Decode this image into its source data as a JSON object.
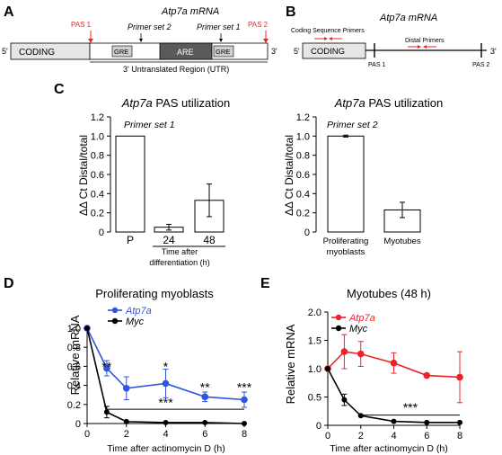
{
  "panels": {
    "A": {
      "label": "A",
      "title": "Atp7a mRNA",
      "five_prime": "5'",
      "three_prime": "3'",
      "coding": "CODING",
      "gre1": "GRE",
      "are": "ARE",
      "gre2": "GRE",
      "pas1": "PAS 1",
      "pas2": "PAS 2",
      "primer2": "Primer set 2",
      "primer1": "Primer set 1",
      "utr": "3' Untranslated Region (UTR)",
      "pas_color": "#e8242a"
    },
    "B": {
      "label": "B",
      "title": "Atp7a mRNA",
      "five_prime": "5'",
      "three_prime": "3'",
      "coding": "CODING",
      "coding_primers": "Coding Sequence Primers",
      "distal_primers": "Distal Primers",
      "pas1": "PAS 1",
      "pas2": "PAS 2",
      "arrow_color": "#e8242a"
    },
    "C": {
      "label": "C"
    },
    "D": {
      "label": "D"
    },
    "E": {
      "label": "E"
    }
  },
  "chart_data": [
    {
      "id": "C1",
      "type": "bar",
      "title": "Atp7a PAS utilization",
      "inset": "Primer set 1",
      "ylabel": "ΔΔ Ct Distal/total",
      "ylim": [
        0,
        1.2
      ],
      "yticks": [
        "0",
        "0.2",
        "0.4",
        "0.6",
        "0.8",
        "1.0",
        "1.2"
      ],
      "categories": [
        "P",
        "24",
        "48"
      ],
      "values": [
        1.0,
        0.05,
        0.33
      ],
      "errors": [
        0,
        0.03,
        0.17
      ],
      "group_label": "Time after differentiation (h)"
    },
    {
      "id": "C2",
      "type": "bar",
      "title": "Atp7a PAS utilization",
      "inset": "Primer set 2",
      "ylabel": "ΔΔ Ct Distal/total",
      "ylim": [
        0,
        1.2
      ],
      "yticks": [
        "0",
        "0.2",
        "0.4",
        "0.6",
        "0.8",
        "1.0",
        "1.2"
      ],
      "categories": [
        "Proliferating myoblasts",
        "Myotubes"
      ],
      "category_lines": [
        [
          "Proliferating",
          "myoblasts"
        ],
        [
          "Myotubes"
        ]
      ],
      "values": [
        1.0,
        0.23
      ],
      "errors": [
        0.01,
        0.08
      ]
    },
    {
      "id": "D",
      "type": "line",
      "title": "Proliferating myoblasts",
      "xlabel": "Time after actinomycin D (h)",
      "ylabel": "Relative mRNA",
      "xlim": [
        0,
        8
      ],
      "ylim": [
        0,
        1.0
      ],
      "xticks": [
        "0",
        "2",
        "4",
        "6",
        "8"
      ],
      "yticks": [
        "0",
        "0.2",
        "0.4",
        "0.6",
        "0.8",
        "1.0"
      ],
      "x": [
        0,
        1,
        2,
        4,
        6,
        8
      ],
      "series": [
        {
          "name": "Atp7a",
          "color": "#3355dd",
          "values": [
            1.0,
            0.58,
            0.37,
            0.42,
            0.28,
            0.25
          ],
          "errors": [
            0,
            0.08,
            0.12,
            0.15,
            0.05,
            0.08
          ]
        },
        {
          "name": "Myc",
          "color": "#000000",
          "values": [
            1.0,
            0.12,
            0.02,
            0.01,
            0.01,
            0.0
          ],
          "errors": [
            0,
            0.06,
            0,
            0,
            0,
            0
          ]
        }
      ],
      "annotations": [
        {
          "text": "**",
          "x": 1,
          "y": 0.6
        },
        {
          "text": "*",
          "x": 4,
          "y": 0.6
        },
        {
          "text": "**",
          "x": 6,
          "y": 0.38
        },
        {
          "text": "***",
          "x": 8,
          "y": 0.38
        },
        {
          "text": "***",
          "x": 4,
          "y": 0.22
        }
      ],
      "bracket": {
        "x1": 1,
        "x2": 8,
        "y": 0.15
      }
    },
    {
      "id": "E",
      "type": "line",
      "title": "Myotubes (48 h)",
      "xlabel": "Time after actinomycin D (h)",
      "ylabel": "Relative mRNA",
      "xlim": [
        0,
        8
      ],
      "ylim": [
        0,
        2.0
      ],
      "xticks": [
        "0",
        "2",
        "4",
        "6",
        "8"
      ],
      "yticks": [
        "0",
        "0.5",
        "1.0",
        "1.5",
        "2.0"
      ],
      "x": [
        0,
        1,
        2,
        4,
        6,
        8
      ],
      "series": [
        {
          "name": "Atp7a",
          "color": "#e8242a",
          "values": [
            1.0,
            1.3,
            1.26,
            1.1,
            0.88,
            0.85
          ],
          "errors": [
            0,
            0.3,
            0.22,
            0.18,
            0,
            0.45
          ]
        },
        {
          "name": "Myc",
          "color": "#000000",
          "values": [
            1.0,
            0.45,
            0.17,
            0.07,
            0.05,
            0.05
          ],
          "errors": [
            0,
            0.1,
            0,
            0,
            0,
            0
          ]
        }
      ],
      "annotations": [
        {
          "text": "***",
          "x": 5,
          "y": 0.32
        }
      ],
      "bracket": {
        "x1": 2,
        "x2": 8,
        "y": 0.18
      }
    }
  ]
}
